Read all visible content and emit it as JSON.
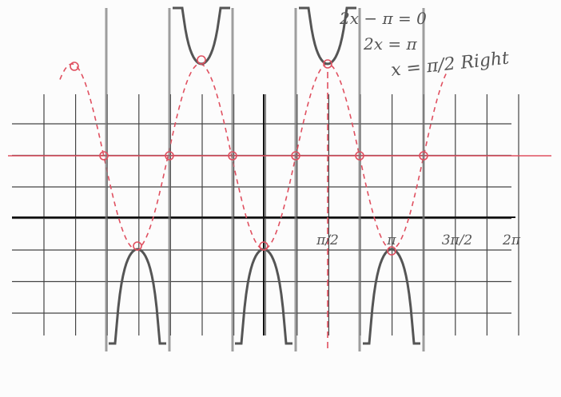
{
  "notes": {
    "line1": "2x − π = 0",
    "line2": "2x = π",
    "line3": "x = π/2 Right"
  },
  "axis_labels": [
    "π/2",
    "π",
    "3π/2",
    "2π"
  ]
}
